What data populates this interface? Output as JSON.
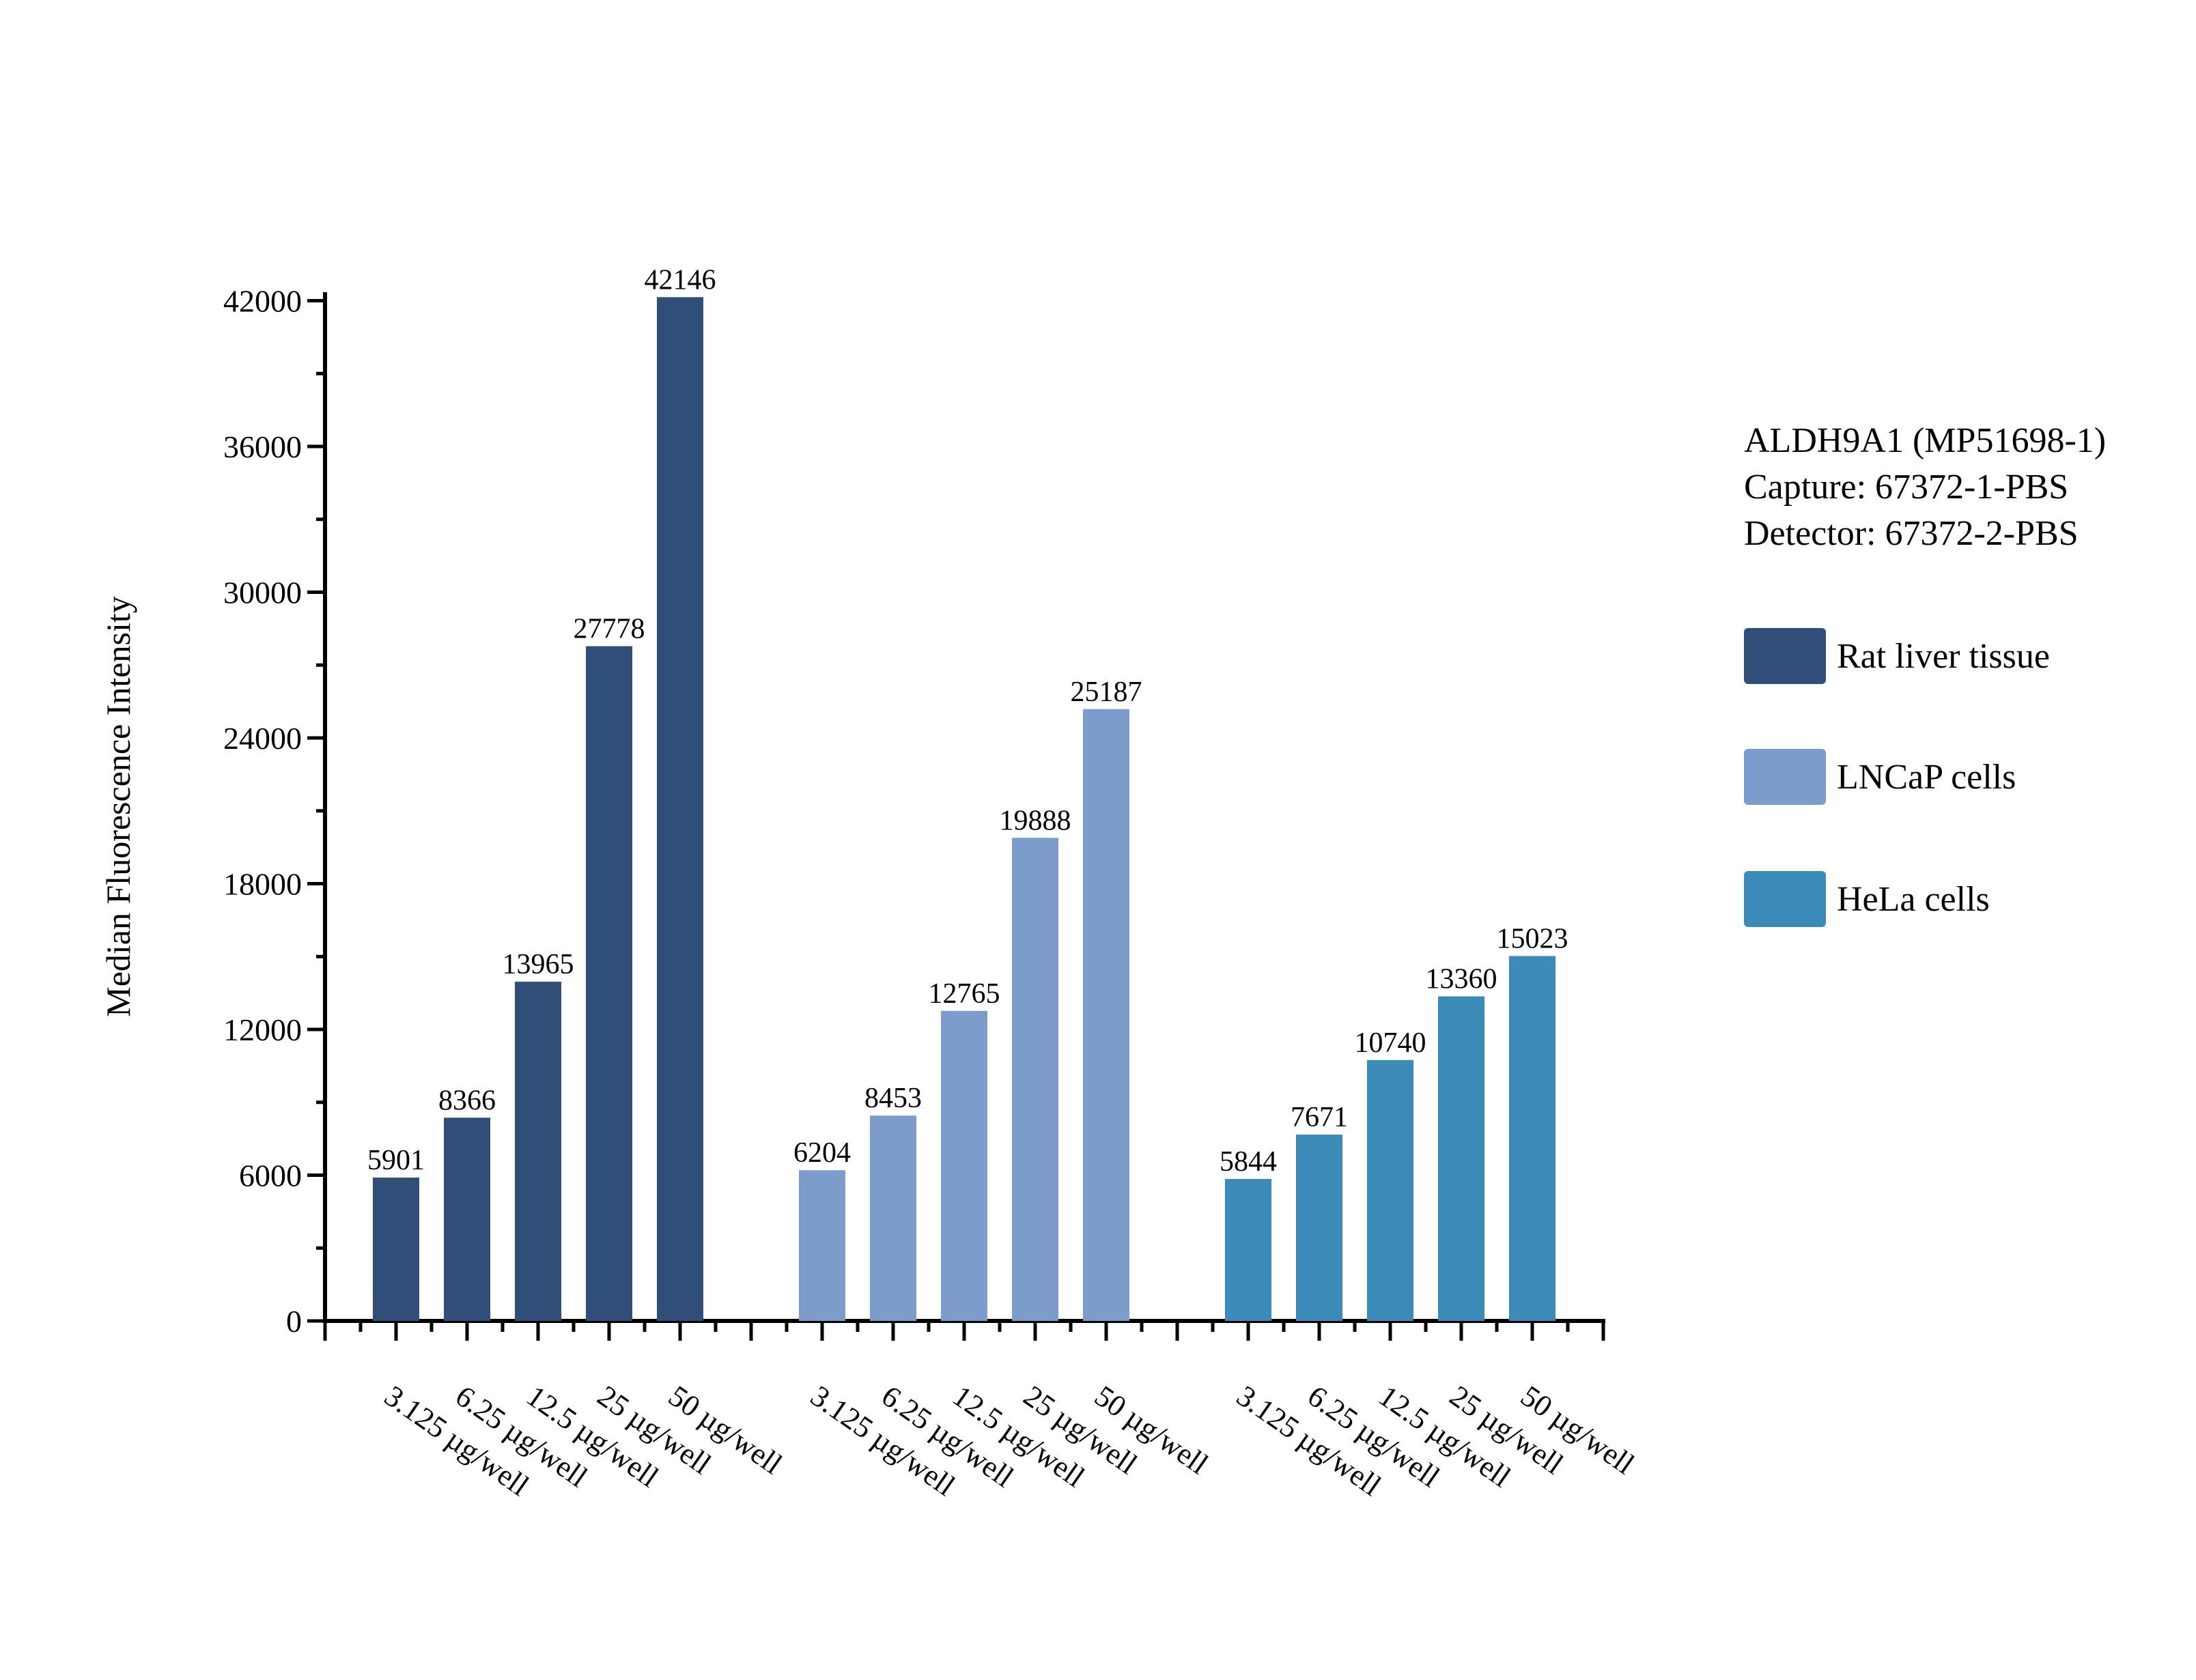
{
  "chart_data": {
    "type": "bar",
    "title": "",
    "ylabel": "Median Fluorescence Intensity",
    "xlabel": "",
    "grid": false,
    "legend_position": "right",
    "categories": [
      "3.125 µg/well",
      "6.25 µg/well",
      "12.5 µg/well",
      "25 µg/well",
      "50 µg/well"
    ],
    "series": [
      {
        "name": "Rat liver tissue",
        "color": "#2F4E78",
        "values": [
          5901,
          8366,
          13965,
          27778,
          42146
        ]
      },
      {
        "name": "LNCaP cells",
        "color": "#7C9DCB",
        "values": [
          6204,
          8453,
          12765,
          19888,
          25187
        ]
      },
      {
        "name": "HeLa cells",
        "color": "#3C8AB8",
        "values": [
          5844,
          7671,
          10740,
          13360,
          15023
        ]
      }
    ],
    "y_axis": {
      "min": 0,
      "max": 43300,
      "major_step": 6000,
      "minor_step": 3000,
      "tick_labels": [
        "0",
        "6000",
        "12000",
        "18000",
        "24000",
        "30000",
        "36000",
        "42000"
      ]
    },
    "annotation": {
      "line1": "ALDH9A1 (MP51698-1)",
      "line2": "Capture: 67372-1-PBS",
      "line3": "Detector: 67372-2-PBS"
    }
  }
}
